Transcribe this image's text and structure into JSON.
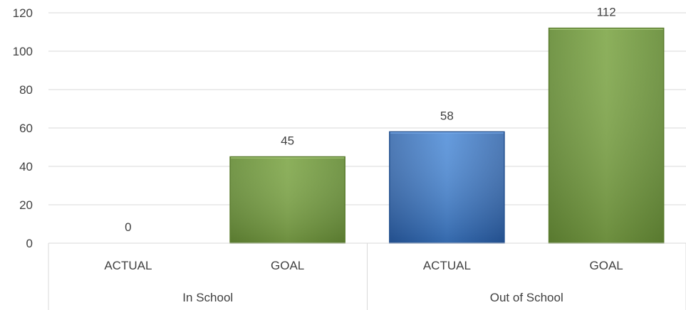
{
  "chart_data": {
    "type": "bar",
    "title": "",
    "xlabel": "",
    "ylabel": "",
    "ylim": [
      0,
      120
    ],
    "yticks": [
      0,
      20,
      40,
      60,
      80,
      100,
      120
    ],
    "grid": true,
    "legend": "none",
    "groups": [
      "In School",
      "Out of School"
    ],
    "categories": [
      "ACTUAL",
      "GOAL",
      "ACTUAL",
      "GOAL"
    ],
    "category_group": [
      0,
      0,
      1,
      1
    ],
    "values": [
      0,
      45,
      58,
      112
    ],
    "data_labels": [
      "0",
      "45",
      "58",
      "112"
    ],
    "bar_colors": {
      "ACTUAL": "#3a78c9",
      "GOAL": "#77a043"
    }
  }
}
